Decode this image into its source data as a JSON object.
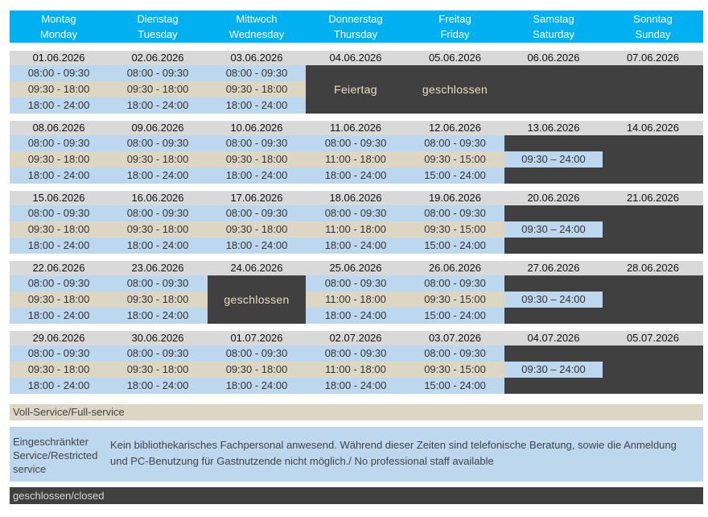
{
  "days": [
    {
      "de": "Montag",
      "en": "Monday"
    },
    {
      "de": "Dienstag",
      "en": "Tuesday"
    },
    {
      "de": "Mittwoch",
      "en": "Wednesday"
    },
    {
      "de": "Donnerstag",
      "en": "Thursday"
    },
    {
      "de": "Freitag",
      "en": "Friday"
    },
    {
      "de": "Samstag",
      "en": "Saturday"
    },
    {
      "de": "Sonntag",
      "en": "Sunday"
    }
  ],
  "weeks": [
    {
      "dates": [
        "01.06.2026",
        "02.06.2026",
        "03.06.2026",
        "04.06.2026",
        "05.06.2026",
        "06.06.2026",
        "07.06.2026"
      ],
      "days": [
        {
          "slots": [
            "08:00 - 09:30",
            "09:30 - 18:00",
            "18:00 - 24:00"
          ]
        },
        {
          "slots": [
            "08:00 - 09:30",
            "09:30 - 18:00",
            "18:00 - 24:00"
          ]
        },
        {
          "slots": [
            "08:00 - 09:30",
            "09:30 - 18:00",
            "18:00 - 24:00"
          ]
        },
        {
          "closed": "Feiertag"
        },
        {
          "closed": "geschlossen"
        },
        {
          "closed": ""
        },
        {
          "closed": ""
        }
      ]
    },
    {
      "dates": [
        "08.06.2026",
        "09.06.2026",
        "10.06.2026",
        "11.06.2026",
        "12.06.2026",
        "13.06.2026",
        "14.06.2026"
      ],
      "days": [
        {
          "slots": [
            "08:00 - 09:30",
            "09:30 - 18:00",
            "18:00 - 24:00"
          ]
        },
        {
          "slots": [
            "08:00 - 09:30",
            "09:30 - 18:00",
            "18:00 - 24:00"
          ]
        },
        {
          "slots": [
            "08:00 - 09:30",
            "09:30 - 18:00",
            "18:00 - 24:00"
          ]
        },
        {
          "slots": [
            "08:00 - 09:30",
            "11:00 - 18:00",
            "18:00 - 24:00"
          ]
        },
        {
          "slots": [
            "08:00 - 09:30",
            "09:30 - 15:00",
            "15:00 - 24:00"
          ]
        },
        {
          "saturday": "09:30 – 24:00"
        },
        {
          "closed": ""
        }
      ]
    },
    {
      "dates": [
        "15.06.2026",
        "16.06.2026",
        "17.06.2026",
        "18.06.2026",
        "19.06.2026",
        "20.06.2026",
        "21.06.2026"
      ],
      "days": [
        {
          "slots": [
            "08:00 - 09:30",
            "09:30 - 18:00",
            "18:00 - 24:00"
          ]
        },
        {
          "slots": [
            "08:00 - 09:30",
            "09:30 - 18:00",
            "18:00 - 24:00"
          ]
        },
        {
          "slots": [
            "08:00 - 09:30",
            "09:30 - 18:00",
            "18:00 - 24:00"
          ]
        },
        {
          "slots": [
            "08:00 - 09:30",
            "11:00 - 18:00",
            "18:00 - 24:00"
          ]
        },
        {
          "slots": [
            "08:00 - 09:30",
            "09:30 - 15:00",
            "15:00 - 24:00"
          ]
        },
        {
          "saturday": "09:30 – 24:00"
        },
        {
          "closed": ""
        }
      ]
    },
    {
      "dates": [
        "22.06.2026",
        "23.06.2026",
        "24.06.2026",
        "25.06.2026",
        "26.06.2026",
        "27.06.2026",
        "28.06.2026"
      ],
      "days": [
        {
          "slots": [
            "08:00 - 09:30",
            "09:30 - 18:00",
            "18:00 - 24:00"
          ]
        },
        {
          "slots": [
            "08:00 - 09:30",
            "09:30 - 18:00",
            "18:00 - 24:00"
          ]
        },
        {
          "closed": "geschlossen"
        },
        {
          "slots": [
            "08:00 - 09:30",
            "11:00 - 18:00",
            "18:00 - 24:00"
          ]
        },
        {
          "slots": [
            "08:00 - 09:30",
            "09:30 - 15:00",
            "15:00 - 24:00"
          ]
        },
        {
          "saturday": "09:30 – 24:00"
        },
        {
          "closed": ""
        }
      ]
    },
    {
      "dates": [
        "29.06.2026",
        "30.06.2026",
        "01.07.2026",
        "02.07.2026",
        "03.07.2026",
        "04.07.2026",
        "05.07.2026"
      ],
      "days": [
        {
          "slots": [
            "08:00 - 09:30",
            "09:30 - 18:00",
            "18:00 - 24:00"
          ]
        },
        {
          "slots": [
            "08:00 - 09:30",
            "09:30 - 18:00",
            "18:00 - 24:00"
          ]
        },
        {
          "slots": [
            "08:00 - 09:30",
            "09:30 - 18:00",
            "18:00 - 24:00"
          ]
        },
        {
          "slots": [
            "08:00 - 09:30",
            "11:00 - 18:00",
            "18:00 - 24:00"
          ]
        },
        {
          "slots": [
            "08:00 - 09:30",
            "09:30 - 15:00",
            "15:00 - 24:00"
          ]
        },
        {
          "saturday": "09:30 – 24:00"
        },
        {
          "closed": ""
        }
      ]
    }
  ],
  "legend": {
    "full": "Voll-Service/Full-service",
    "restricted_label": "Eingeschränkter Service/Restricted service",
    "restricted_text": "Kein bibliothekarisches Fachpersonal anwesend. Während dieser Zeiten sind telefonische Beratung, sowie die Anmeldung und PC-Benutzung für Gastnutzende nicht möglich./ No professional staff available",
    "closed": "geschlossen/closed"
  },
  "colors": {
    "header": "#00b0f0",
    "restricted": "#bdd7ee",
    "full": "#ddd6c4",
    "closed": "#404040",
    "date_row": "#d9d9d9"
  }
}
